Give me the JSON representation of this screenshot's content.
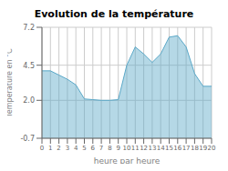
{
  "chart_data": {
    "type": "area",
    "title": "Evolution de la température",
    "xlabel": "heure par heure",
    "ylabel": "Température en °C",
    "x": [
      0,
      1,
      2,
      3,
      4,
      5,
      6,
      7,
      8,
      9,
      10,
      11,
      12,
      13,
      14,
      15,
      16,
      17,
      18,
      19,
      20
    ],
    "values": [
      4.1,
      4.1,
      3.8,
      3.5,
      3.1,
      2.1,
      2.05,
      2.0,
      2.0,
      2.05,
      4.5,
      5.8,
      5.3,
      4.7,
      5.3,
      6.5,
      6.6,
      5.8,
      3.9,
      3.0,
      3.0
    ],
    "color": "#5aa8c8",
    "xlim": [
      0,
      20
    ],
    "xticks": [
      0,
      1,
      2,
      3,
      4,
      5,
      6,
      7,
      8,
      9,
      10,
      11,
      12,
      13,
      14,
      15,
      16,
      17,
      18,
      19,
      20
    ],
    "ylim": [
      -0.7,
      7.2
    ],
    "yticks": [
      -0.7,
      {
        "value": 2,
        "label": "2.0"
      },
      4.5,
      7.2
    ],
    "grid": true
  }
}
